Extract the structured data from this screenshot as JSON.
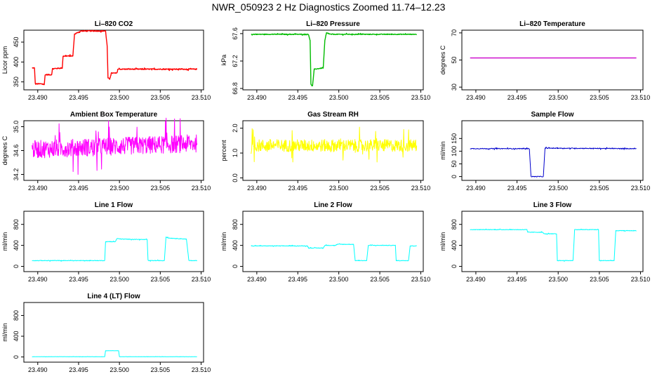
{
  "figure_title": "NWR_050923  2 Hz Diagnostics Zoomed 11.74–12.23",
  "chart_data": [
    {
      "id": "co2",
      "type": "line",
      "title": "Li–820 CO2",
      "ylabel": "Licor ppm",
      "color": "#ff0000",
      "noise": 1.2,
      "xlim": [
        23.4883,
        23.5103
      ],
      "ylim": [
        330,
        480
      ],
      "xticks": [
        "23.490",
        "23.495",
        "23.500",
        "23.505",
        "23.510"
      ],
      "yticks": [
        "350",
        "400",
        "450"
      ],
      "x": [
        23.4893,
        23.4896,
        23.4897,
        23.4905,
        23.4908,
        23.4909,
        23.4917,
        23.4918,
        23.493,
        23.4931,
        23.4943,
        23.4945,
        23.4953,
        23.4983,
        23.4985,
        23.4986,
        23.4988,
        23.499,
        23.4997,
        23.4998,
        23.5095
      ],
      "y": [
        385,
        385,
        345,
        345,
        343,
        368,
        368,
        383,
        385,
        415,
        415,
        470,
        478,
        478,
        440,
        360,
        357,
        372,
        372,
        382,
        382
      ]
    },
    {
      "id": "pressure",
      "type": "line",
      "title": "Li–820 Pressure",
      "ylabel": "kPa",
      "color": "#00bb00",
      "noise": 0.005,
      "xlim": [
        23.4883,
        23.5103
      ],
      "ylim": [
        66.78,
        67.65
      ],
      "xticks": [
        "23.490",
        "23.495",
        "23.500",
        "23.505",
        "23.510"
      ],
      "yticks": [
        "66.8",
        "67.2",
        "67.6"
      ],
      "x": [
        23.4893,
        23.4963,
        23.4965,
        23.4966,
        23.4968,
        23.497,
        23.4981,
        23.4983,
        23.4985,
        23.499,
        23.5095
      ],
      "y": [
        67.59,
        67.59,
        67.5,
        66.86,
        66.84,
        67.08,
        67.1,
        67.5,
        67.61,
        67.59,
        67.59
      ]
    },
    {
      "id": "licor_temp",
      "type": "line",
      "title": "Li–820 Temperature",
      "ylabel": "degrees C",
      "color": "#cc00cc",
      "noise": 0,
      "xlim": [
        23.4883,
        23.5103
      ],
      "ylim": [
        28,
        72
      ],
      "xticks": [
        "23.490",
        "23.495",
        "23.500",
        "23.505",
        "23.510"
      ],
      "yticks": [
        "30",
        "50",
        "70"
      ],
      "x": [
        23.4893,
        23.5095
      ],
      "y": [
        51.5,
        51.5
      ]
    },
    {
      "id": "box_temp",
      "type": "line",
      "title": "Ambient Box Temperature",
      "ylabel": "degrees C",
      "color": "#ff00ff",
      "noise": 0.15,
      "xlim": [
        23.4883,
        23.5103
      ],
      "ylim": [
        34.1,
        35.1
      ],
      "xticks": [
        "23.490",
        "23.495",
        "23.500",
        "23.505",
        "23.510"
      ],
      "yticks": [
        "34.2",
        "34.6",
        "35.0"
      ],
      "x": [
        23.4893,
        23.5095
      ],
      "y": [
        34.62,
        34.72
      ]
    },
    {
      "id": "rh",
      "type": "line",
      "title": "Gas Stream RH",
      "ylabel": "percent",
      "color": "#ffff00",
      "noise": 0.25,
      "xlim": [
        23.4883,
        23.5103
      ],
      "ylim": [
        -0.1,
        2.3
      ],
      "xticks": [
        "23.490",
        "23.495",
        "23.500",
        "23.505",
        "23.510"
      ],
      "yticks": [
        "0.0",
        "1.0",
        "2.0"
      ],
      "x": [
        23.4893,
        23.5095
      ],
      "y": [
        1.3,
        1.3
      ]
    },
    {
      "id": "sample_flow",
      "type": "line",
      "title": "Sample Flow",
      "ylabel": "ml/min",
      "color": "#0000cc",
      "noise": 1.5,
      "xlim": [
        23.4883,
        23.5103
      ],
      "ylim": [
        -15,
        220
      ],
      "xticks": [
        "23.490",
        "23.495",
        "23.500",
        "23.505",
        "23.510"
      ],
      "yticks": [
        "0",
        "50",
        "100",
        "150"
      ],
      "x": [
        23.4893,
        23.4965,
        23.4967,
        23.4982,
        23.4984,
        23.5095
      ],
      "y": [
        110,
        110,
        0,
        0,
        112,
        110
      ]
    },
    {
      "id": "line1",
      "type": "line",
      "title": "Line 1 Flow",
      "ylabel": "ml/min",
      "color": "#00ffff",
      "noise": 5,
      "xlim": [
        23.4883,
        23.5103
      ],
      "ylim": [
        -100,
        1050
      ],
      "xticks": [
        "23.490",
        "23.495",
        "23.500",
        "23.505",
        "23.510"
      ],
      "yticks": [
        "0",
        "400",
        "800"
      ],
      "x": [
        23.4893,
        23.4982,
        23.4983,
        23.4995,
        23.4997,
        23.5003,
        23.5034,
        23.5035,
        23.5055,
        23.5057,
        23.506,
        23.5082,
        23.5085,
        23.5095
      ],
      "y": [
        110,
        110,
        470,
        470,
        530,
        520,
        510,
        110,
        110,
        560,
        540,
        520,
        110,
        110
      ]
    },
    {
      "id": "line2",
      "type": "line",
      "title": "Line 2 Flow",
      "ylabel": "ml/min",
      "color": "#00ffff",
      "noise": 5,
      "xlim": [
        23.4883,
        23.5103
      ],
      "ylim": [
        -100,
        1050
      ],
      "xticks": [
        "23.490",
        "23.495",
        "23.500",
        "23.505",
        "23.510"
      ],
      "yticks": [
        "0",
        "400",
        "800"
      ],
      "x": [
        23.4893,
        23.4962,
        23.4963,
        23.4981,
        23.4983,
        23.4996,
        23.4998,
        23.5018,
        23.502,
        23.5034,
        23.5036,
        23.5069,
        23.507,
        23.5085,
        23.5087,
        23.5095
      ],
      "y": [
        390,
        390,
        350,
        350,
        400,
        400,
        420,
        420,
        110,
        110,
        400,
        400,
        110,
        110,
        390,
        390
      ]
    },
    {
      "id": "line3",
      "type": "line",
      "title": "Line 3 Flow",
      "ylabel": "ml/min",
      "color": "#00ffff",
      "noise": 5,
      "xlim": [
        23.4883,
        23.5103
      ],
      "ylim": [
        -100,
        1050
      ],
      "xticks": [
        "23.490",
        "23.495",
        "23.500",
        "23.505",
        "23.510"
      ],
      "yticks": [
        "0",
        "400",
        "800"
      ],
      "x": [
        23.4893,
        23.4962,
        23.4963,
        23.4981,
        23.4983,
        23.4998,
        23.4999,
        23.5018,
        23.502,
        23.5049,
        23.505,
        23.5068,
        23.507,
        23.5095
      ],
      "y": [
        700,
        700,
        650,
        650,
        620,
        620,
        110,
        110,
        700,
        700,
        110,
        110,
        680,
        680
      ]
    },
    {
      "id": "line4",
      "type": "line",
      "title": "Line 4 (LT) Flow",
      "ylabel": "ml/min",
      "color": "#00ffff",
      "noise": 1.5,
      "xlim": [
        23.4883,
        23.5103
      ],
      "ylim": [
        -100,
        1050
      ],
      "xticks": [
        "23.490",
        "23.495",
        "23.500",
        "23.505",
        "23.510"
      ],
      "yticks": [
        "0",
        "400",
        "800"
      ],
      "x": [
        23.4893,
        23.4982,
        23.4983,
        23.4999,
        23.5,
        23.5095
      ],
      "y": [
        5,
        5,
        120,
        120,
        5,
        5
      ]
    }
  ]
}
